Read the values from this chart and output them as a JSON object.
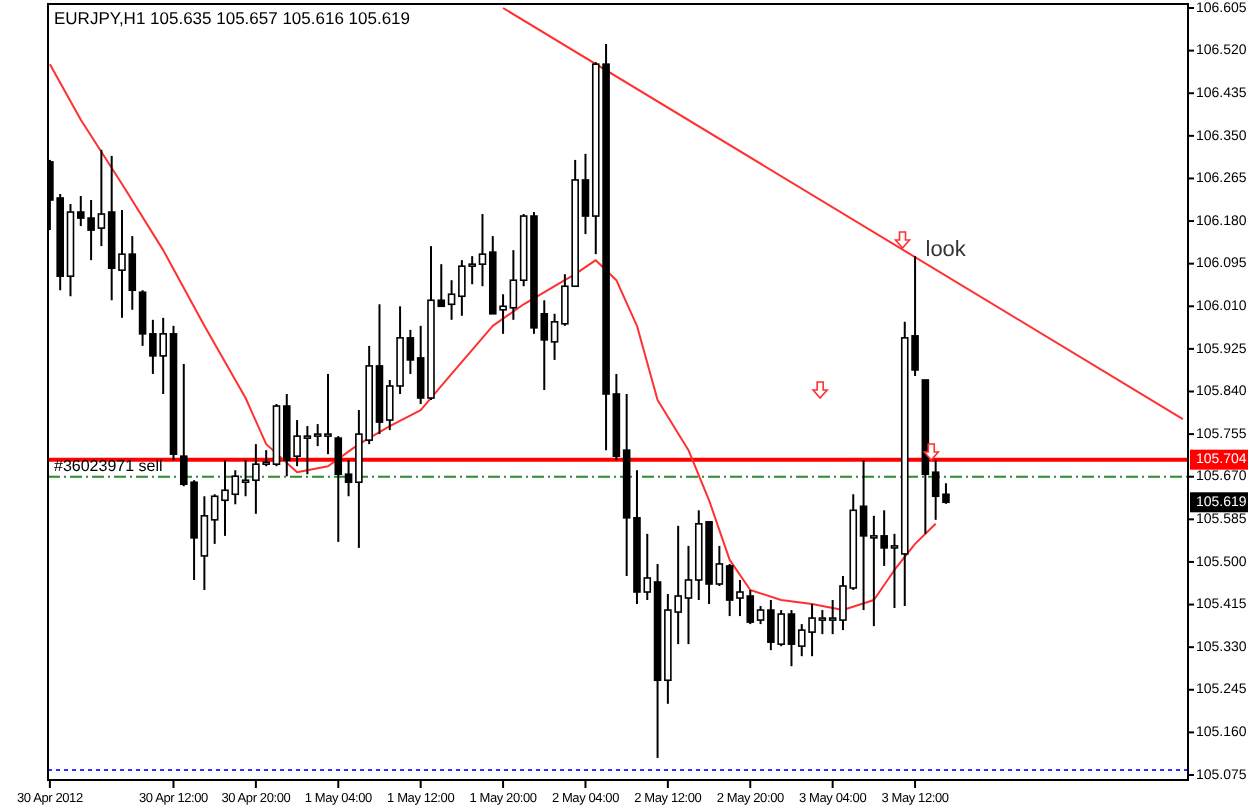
{
  "chart_data": {
    "type": "candlestick",
    "title": "EURJPY,H1  105.635 105.657 105.616 105.619",
    "xlim": [
      "2012-04-29T23:49",
      "2012-05-04T14:30"
    ],
    "ylim": [
      105.065,
      106.613
    ],
    "yticks": [
      106.605,
      {
        "value": 106.52,
        "label": "106.520"
      },
      106.435,
      {
        "value": 106.35,
        "label": "106.350"
      },
      106.265,
      {
        "value": 106.18,
        "label": "106.180"
      },
      106.095,
      {
        "value": 106.01,
        "label": "106.010"
      },
      105.925,
      {
        "value": 105.84,
        "label": "105.840"
      },
      105.755,
      {
        "value": 105.67,
        "label": "105.670"
      },
      105.585,
      {
        "value": 105.5,
        "label": "105.500"
      },
      105.415,
      {
        "value": 105.33,
        "label": "105.330"
      },
      105.245,
      {
        "value": 105.16,
        "label": "105.160"
      },
      105.075
    ],
    "xticks": [
      {
        "value": "2012-04-30T00:00",
        "label": "30 Apr 2012"
      },
      {
        "value": "2012-04-30T12:00",
        "label": "30 Apr 12:00"
      },
      {
        "value": "2012-04-30T20:00",
        "label": "30 Apr 20:00"
      },
      {
        "value": "2012-05-01T04:00",
        "label": "1 May 04:00"
      },
      {
        "value": "2012-05-01T12:00",
        "label": "1 May 12:00"
      },
      {
        "value": "2012-05-01T20:00",
        "label": "1 May 20:00"
      },
      {
        "value": "2012-05-02T04:00",
        "label": "2 May 04:00"
      },
      {
        "value": "2012-05-02T12:00",
        "label": "2 May 12:00"
      },
      {
        "value": "2012-05-02T20:00",
        "label": "2 May 20:00"
      },
      {
        "value": "2012-05-03T04:00",
        "label": "3 May 04:00"
      },
      {
        "value": "2012-05-03T12:00",
        "label": "3 May 12:00"
      }
    ],
    "x": [
      "2012-04-30T00:00",
      "2012-04-30T01:00",
      "2012-04-30T02:00",
      "2012-04-30T03:00",
      "2012-04-30T04:00",
      "2012-04-30T05:00",
      "2012-04-30T06:00",
      "2012-04-30T07:00",
      "2012-04-30T08:00",
      "2012-04-30T09:00",
      "2012-04-30T10:00",
      "2012-04-30T11:00",
      "2012-04-30T12:00",
      "2012-04-30T13:00",
      "2012-04-30T14:00",
      "2012-04-30T15:00",
      "2012-04-30T16:00",
      "2012-04-30T17:00",
      "2012-04-30T18:00",
      "2012-04-30T19:00",
      "2012-04-30T20:00",
      "2012-04-30T21:00",
      "2012-04-30T22:00",
      "2012-04-30T23:00",
      "2012-05-01T00:00",
      "2012-05-01T01:00",
      "2012-05-01T02:00",
      "2012-05-01T03:00",
      "2012-05-01T04:00",
      "2012-05-01T05:00",
      "2012-05-01T06:00",
      "2012-05-01T07:00",
      "2012-05-01T08:00",
      "2012-05-01T09:00",
      "2012-05-01T10:00",
      "2012-05-01T11:00",
      "2012-05-01T12:00",
      "2012-05-01T13:00",
      "2012-05-01T14:00",
      "2012-05-01T15:00",
      "2012-05-01T16:00",
      "2012-05-01T17:00",
      "2012-05-01T18:00",
      "2012-05-01T19:00",
      "2012-05-01T20:00",
      "2012-05-01T21:00",
      "2012-05-01T22:00",
      "2012-05-01T23:00",
      "2012-05-02T00:00",
      "2012-05-02T01:00",
      "2012-05-02T02:00",
      "2012-05-02T03:00",
      "2012-05-02T04:00",
      "2012-05-02T05:00",
      "2012-05-02T06:00",
      "2012-05-02T07:00",
      "2012-05-02T08:00",
      "2012-05-02T09:00",
      "2012-05-02T10:00",
      "2012-05-02T11:00",
      "2012-05-02T12:00",
      "2012-05-02T13:00",
      "2012-05-02T14:00",
      "2012-05-02T15:00",
      "2012-05-02T16:00",
      "2012-05-02T17:00",
      "2012-05-02T18:00",
      "2012-05-02T19:00",
      "2012-05-02T20:00",
      "2012-05-02T21:00",
      "2012-05-02T22:00",
      "2012-05-02T23:00",
      "2012-05-03T00:00",
      "2012-05-03T01:00",
      "2012-05-03T02:00",
      "2012-05-03T03:00",
      "2012-05-03T04:00",
      "2012-05-03T05:00",
      "2012-05-03T06:00",
      "2012-05-03T07:00",
      "2012-05-03T08:00",
      "2012-05-03T09:00",
      "2012-05-03T10:00",
      "2012-05-03T11:00",
      "2012-05-03T12:00",
      "2012-05-03T13:00",
      "2012-05-03T14:00",
      "2012-05-03T15:00"
    ],
    "ohlc": [
      [
        106.298,
        106.302,
        106.162,
        106.222
      ],
      [
        106.226,
        106.234,
        106.042,
        106.07
      ],
      [
        106.07,
        106.214,
        106.03,
        106.198
      ],
      [
        106.198,
        106.23,
        106.17,
        106.186
      ],
      [
        106.186,
        106.222,
        106.102,
        106.162
      ],
      [
        106.166,
        106.322,
        106.13,
        106.194
      ],
      [
        106.198,
        106.31,
        106.022,
        106.086
      ],
      [
        106.082,
        106.202,
        105.987,
        106.114
      ],
      [
        106.114,
        106.15,
        106.003,
        106.042
      ],
      [
        106.038,
        106.042,
        105.931,
        105.955
      ],
      [
        105.955,
        105.983,
        105.875,
        105.911
      ],
      [
        105.911,
        105.987,
        105.835,
        105.955
      ],
      [
        105.955,
        105.971,
        105.703,
        105.715
      ],
      [
        105.711,
        105.895,
        105.651,
        105.655
      ],
      [
        105.659,
        105.663,
        105.464,
        105.548
      ],
      [
        105.512,
        105.631,
        105.444,
        105.592
      ],
      [
        105.584,
        105.635,
        105.536,
        105.631
      ],
      [
        105.623,
        105.703,
        105.552,
        105.643
      ],
      [
        105.635,
        105.683,
        105.615,
        105.671
      ],
      [
        105.663,
        105.703,
        105.631,
        105.663
      ],
      [
        105.663,
        105.735,
        105.596,
        105.695
      ],
      [
        105.699,
        105.723,
        105.691,
        105.699
      ],
      [
        105.695,
        105.815,
        105.691,
        105.811
      ],
      [
        105.811,
        105.835,
        105.671,
        105.703
      ],
      [
        105.711,
        105.783,
        105.691,
        105.751
      ],
      [
        105.751,
        105.771,
        105.675,
        105.751
      ],
      [
        105.755,
        105.775,
        105.731,
        105.755
      ],
      [
        105.755,
        105.875,
        105.715,
        105.755
      ],
      [
        105.747,
        105.751,
        105.54,
        105.675
      ],
      [
        105.675,
        105.703,
        105.631,
        105.659
      ],
      [
        105.659,
        105.803,
        105.528,
        105.755
      ],
      [
        105.743,
        105.931,
        105.735,
        105.891
      ],
      [
        105.891,
        106.014,
        105.755,
        105.779
      ],
      [
        105.783,
        105.863,
        105.763,
        105.851
      ],
      [
        105.851,
        106.01,
        105.835,
        105.947
      ],
      [
        105.947,
        105.963,
        105.875,
        105.903
      ],
      [
        105.907,
        105.971,
        105.815,
        105.827
      ],
      [
        105.827,
        106.13,
        105.823,
        106.022
      ],
      [
        106.022,
        106.094,
        106.01,
        106.01
      ],
      [
        106.014,
        106.062,
        105.983,
        106.034
      ],
      [
        106.03,
        106.102,
        105.991,
        106.09
      ],
      [
        106.094,
        106.11,
        106.054,
        106.094
      ],
      [
        106.094,
        106.194,
        106.05,
        106.114
      ],
      [
        106.118,
        106.15,
        105.995,
        105.995
      ],
      [
        106.003,
        106.034,
        105.955,
        106.01
      ],
      [
        106.007,
        106.122,
        105.983,
        106.062
      ],
      [
        106.062,
        106.194,
        106.05,
        106.19
      ],
      [
        106.19,
        106.198,
        105.955,
        105.967
      ],
      [
        105.995,
        106.022,
        105.843,
        105.943
      ],
      [
        105.939,
        105.995,
        105.903,
        105.979
      ],
      [
        105.975,
        106.074,
        105.971,
        106.05
      ],
      [
        106.05,
        106.302,
        106.05,
        106.262
      ],
      [
        106.262,
        106.314,
        106.154,
        106.19
      ],
      [
        106.19,
        106.497,
        106.114,
        106.493
      ],
      [
        106.493,
        106.533,
        105.723,
        105.835
      ],
      [
        105.835,
        105.875,
        105.703,
        105.711
      ],
      [
        105.723,
        105.835,
        105.472,
        105.588
      ],
      [
        105.588,
        105.683,
        105.416,
        105.44
      ],
      [
        105.44,
        105.556,
        105.424,
        105.468
      ],
      [
        105.46,
        105.496,
        105.109,
        105.264
      ],
      [
        105.264,
        105.436,
        105.217,
        105.404
      ],
      [
        105.4,
        105.572,
        105.336,
        105.432
      ],
      [
        105.428,
        105.532,
        105.336,
        105.464
      ],
      [
        105.464,
        105.603,
        105.424,
        105.576
      ],
      [
        105.58,
        105.58,
        105.416,
        105.456
      ],
      [
        105.456,
        105.532,
        105.452,
        105.496
      ],
      [
        105.492,
        105.496,
        105.392,
        105.424
      ],
      [
        105.428,
        105.464,
        105.392,
        105.44
      ],
      [
        105.432,
        105.444,
        105.376,
        105.38
      ],
      [
        105.384,
        105.412,
        105.376,
        105.404
      ],
      [
        105.404,
        105.424,
        105.324,
        105.34
      ],
      [
        105.336,
        105.404,
        105.332,
        105.396
      ],
      [
        105.396,
        105.404,
        105.292,
        105.336
      ],
      [
        105.332,
        105.376,
        105.312,
        105.364
      ],
      [
        105.36,
        105.416,
        105.312,
        105.388
      ],
      [
        105.388,
        105.404,
        105.356,
        105.388
      ],
      [
        105.388,
        105.424,
        105.356,
        105.388
      ],
      [
        105.384,
        105.472,
        105.364,
        105.452
      ],
      [
        105.448,
        105.635,
        105.444,
        105.603
      ],
      [
        105.611,
        105.703,
        105.404,
        105.552
      ],
      [
        105.548,
        105.592,
        105.372,
        105.552
      ],
      [
        105.552,
        105.603,
        105.492,
        105.528
      ],
      [
        105.528,
        105.556,
        105.408,
        105.532
      ],
      [
        105.516,
        105.979,
        105.412,
        105.947
      ],
      [
        105.951,
        106.11,
        105.871,
        105.883
      ],
      [
        105.863,
        105.863,
        105.556,
        105.675
      ],
      [
        105.679,
        105.703,
        105.584,
        105.631
      ],
      [
        105.635,
        105.657,
        105.616,
        105.619
      ]
    ],
    "series": [
      {
        "type": "line",
        "color": "#ff3030",
        "x": [
          "2012-04-30T00:00",
          "2012-04-30T03:00",
          "2012-04-30T07:00",
          "2012-04-30T11:00",
          "2012-04-30T15:00",
          "2012-04-30T19:00",
          "2012-04-30T21:00",
          "2012-05-01T00:00",
          "2012-05-01T03:00",
          "2012-05-01T06:00",
          "2012-05-01T09:00",
          "2012-05-01T12:00",
          "2012-05-01T15:00",
          "2012-05-01T19:00",
          "2012-05-01T22:00",
          "2012-05-02T01:00",
          "2012-05-02T03:00",
          "2012-05-02T05:00",
          "2012-05-02T07:00",
          "2012-05-02T09:00",
          "2012-05-02T11:00",
          "2012-05-02T14:00",
          "2012-05-02T16:00",
          "2012-05-02T18:00",
          "2012-05-02T20:00",
          "2012-05-02T23:00",
          "2012-05-03T02:00",
          "2012-05-03T05:00",
          "2012-05-03T08:00",
          "2012-05-03T10:00",
          "2012-05-03T12:00",
          "2012-05-03T14:00"
        ],
        "values": [
          106.493,
          106.382,
          106.254,
          106.122,
          105.971,
          105.827,
          105.735,
          105.679,
          105.691,
          105.735,
          105.771,
          105.803,
          105.875,
          105.971,
          106.014,
          106.05,
          106.074,
          106.102,
          106.062,
          105.971,
          105.823,
          105.723,
          105.623,
          105.504,
          105.444,
          105.424,
          105.416,
          105.404,
          105.424,
          105.484,
          105.536,
          105.576
        ]
      },
      {
        "type": "line",
        "color": "#ff3030",
        "x": [
          "2012-05-01T20:00",
          "2012-05-04T14:00"
        ],
        "values": [
          106.605,
          105.785
        ]
      }
    ],
    "ref_lines": [
      {
        "axis": "y",
        "value": 105.704,
        "label": "105.704",
        "color": "#ff0000",
        "line_style": "solid"
      },
      {
        "axis": "y",
        "value": 105.67,
        "label": "#36023971 sell",
        "color": "#2e8b2e",
        "line_style": "dashed"
      },
      {
        "axis": "y",
        "value": 105.085,
        "color": "#3030ff",
        "line_style": "dotted"
      }
    ],
    "annotations": [
      "look",
      "105.619"
    ]
  }
}
